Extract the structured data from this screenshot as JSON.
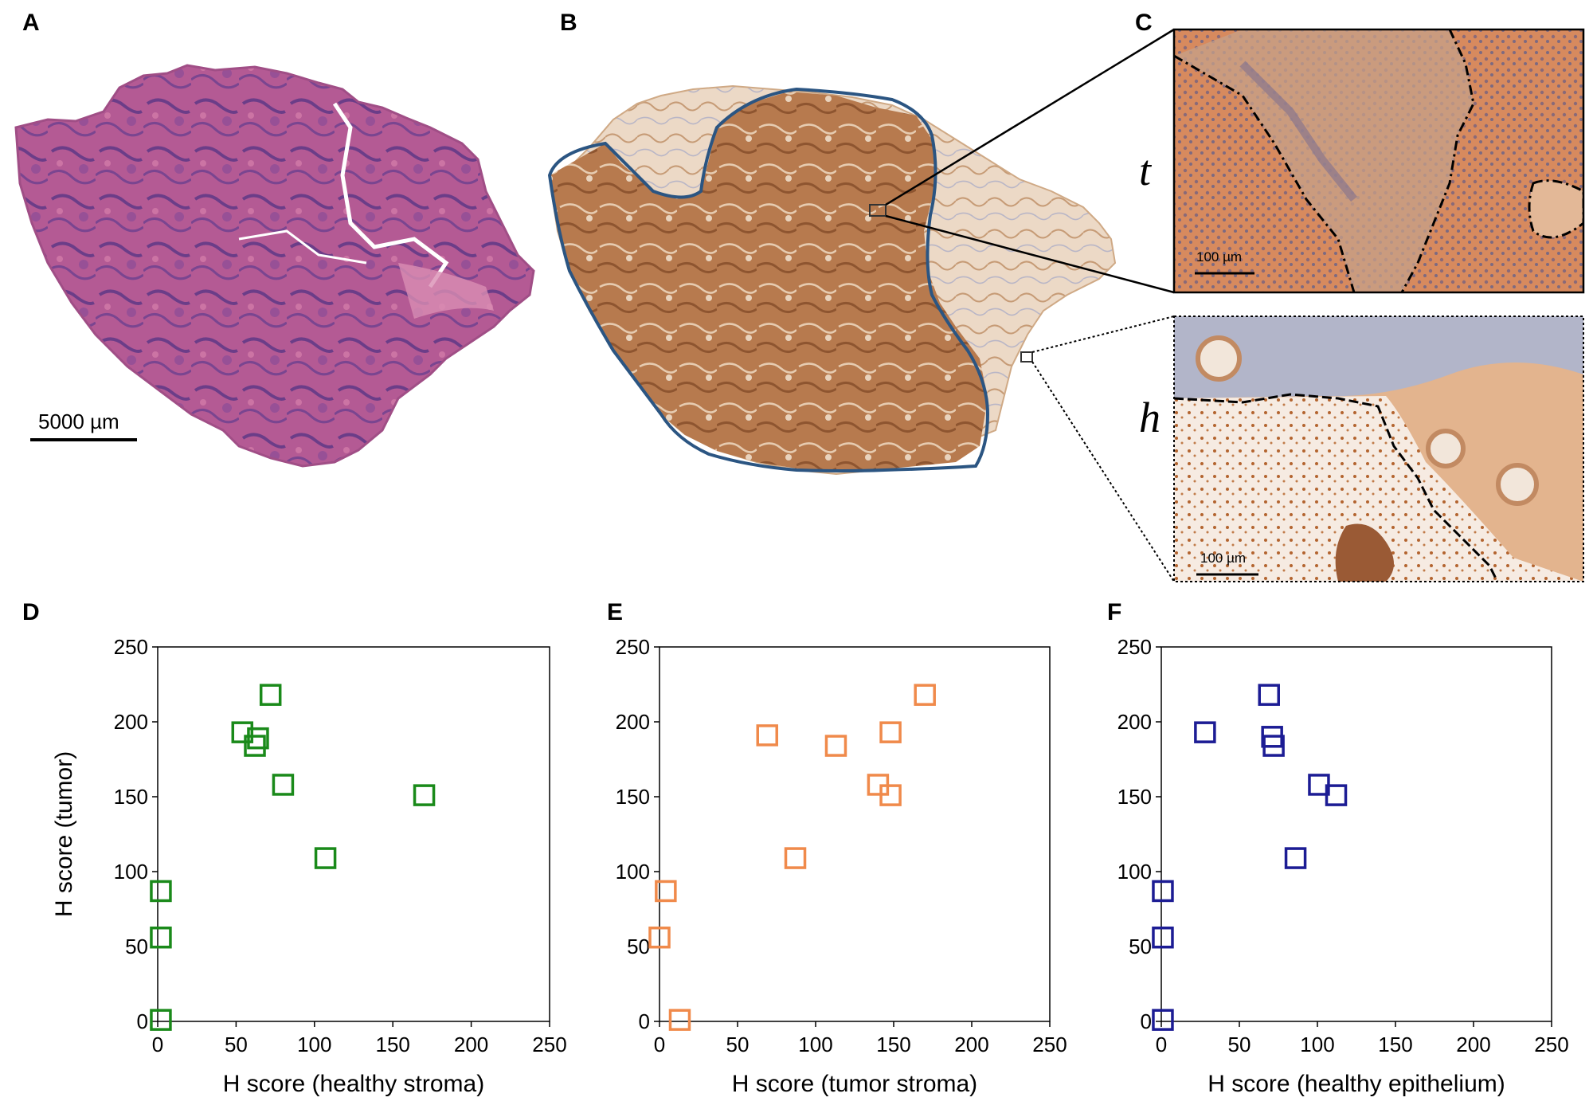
{
  "panel_labels": {
    "A": "A",
    "B": "B",
    "C": "C",
    "D": "D",
    "E": "E",
    "F": "F"
  },
  "scale_bars": {
    "main": "5000 µm",
    "inset_t": "100 µm",
    "inset_h": "100 µm"
  },
  "inset_labels": {
    "t": "t",
    "h": "h"
  },
  "colors": {
    "he_stain": "#b0558f",
    "he_dark": "#6e3f86",
    "ihc_brown": "#b97a4c",
    "ihc_light": "#e8cdb2",
    "tumor_outline": "#2b5582",
    "series_D": "#1a8a1a",
    "series_E": "#f08a4b",
    "series_F": "#1c1c94"
  },
  "chart_data": [
    {
      "type": "scatter",
      "panel": "D",
      "xlabel": "H score (healthy stroma)",
      "ylabel": "H score (tumor)",
      "xlim": [
        0,
        250
      ],
      "ylim": [
        0,
        250
      ],
      "xticks": [
        "0",
        "50",
        "100",
        "150",
        "200",
        "250"
      ],
      "yticks": [
        "0",
        "50",
        "100",
        "150",
        "200",
        "250"
      ],
      "marker": "open-square",
      "color": "#1a8a1a",
      "points": [
        [
          2,
          1
        ],
        [
          2,
          56
        ],
        [
          2,
          87
        ],
        [
          54,
          193
        ],
        [
          62,
          184
        ],
        [
          64,
          189
        ],
        [
          72,
          218
        ],
        [
          80,
          158
        ],
        [
          107,
          109
        ],
        [
          170,
          151
        ]
      ]
    },
    {
      "type": "scatter",
      "panel": "E",
      "xlabel": "H score (tumor stroma)",
      "ylabel": "",
      "xlim": [
        0,
        250
      ],
      "ylim": [
        0,
        250
      ],
      "xticks": [
        "0",
        "50",
        "100",
        "150",
        "200",
        "250"
      ],
      "yticks": [
        "0",
        "50",
        "100",
        "150",
        "200",
        "250"
      ],
      "marker": "open-square",
      "color": "#f08a4b",
      "points": [
        [
          13,
          1
        ],
        [
          0,
          56
        ],
        [
          4,
          87
        ],
        [
          69,
          191
        ],
        [
          113,
          184
        ],
        [
          87,
          109
        ],
        [
          140,
          158
        ],
        [
          148,
          193
        ],
        [
          148,
          151
        ],
        [
          170,
          218
        ]
      ]
    },
    {
      "type": "scatter",
      "panel": "F",
      "xlabel": "H score (healthy epithelium)",
      "ylabel": "",
      "xlim": [
        0,
        250
      ],
      "ylim": [
        0,
        250
      ],
      "xticks": [
        "0",
        "50",
        "100",
        "150",
        "200",
        "250"
      ],
      "yticks": [
        "0",
        "50",
        "100",
        "150",
        "200",
        "250"
      ],
      "marker": "open-square",
      "color": "#1c1c94",
      "points": [
        [
          1,
          1
        ],
        [
          1,
          56
        ],
        [
          1,
          87
        ],
        [
          28,
          193
        ],
        [
          69,
          218
        ],
        [
          71,
          190
        ],
        [
          72,
          184
        ],
        [
          86,
          109
        ],
        [
          101,
          158
        ],
        [
          112,
          151
        ]
      ]
    }
  ]
}
